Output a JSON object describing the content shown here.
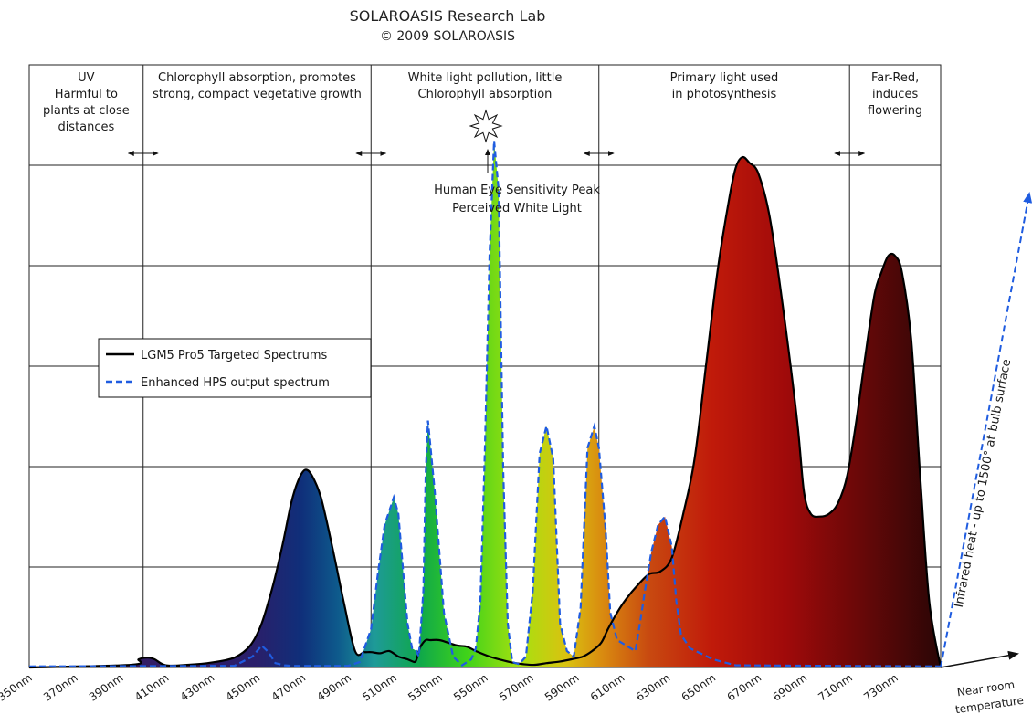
{
  "header": {
    "title": "SOLAROASIS Research Lab",
    "copyright": "© 2009 SOLAROASIS"
  },
  "colors": {
    "targeted_line": "#000000",
    "hps_line": "#1f5ce0",
    "arrow": "#111111"
  },
  "chart_data": {
    "type": "area",
    "title": "SOLAROASIS Research Lab",
    "subtitle": "© 2009 SOLAROASIS",
    "xlabel": "",
    "ylabel": "",
    "xlim": [
      350,
      750
    ],
    "ylim": [
      0,
      100
    ],
    "x_ticks": [
      "350nm",
      "370nm",
      "390nm",
      "410nm",
      "430nm",
      "450nm",
      "470nm",
      "490nm",
      "510nm",
      "530nm",
      "550nm",
      "570nm",
      "590nm",
      "610nm",
      "630nm",
      "650nm",
      "670nm",
      "690nm",
      "710nm",
      "730nm"
    ],
    "grid": true,
    "legend_position": "left-middle",
    "bands": [
      {
        "from": 350,
        "to": 400,
        "lines": [
          "UV",
          "Harmful to",
          "plants at close",
          "distances"
        ]
      },
      {
        "from": 400,
        "to": 500,
        "lines": [
          "Chlorophyll absorption, promotes",
          "strong, compact vegetative growth"
        ]
      },
      {
        "from": 500,
        "to": 600,
        "lines": [
          "White light pollution, little",
          "Chlorophyll absorption"
        ]
      },
      {
        "from": 600,
        "to": 710,
        "lines": [
          "Primary light used",
          "in photosynthesis"
        ]
      },
      {
        "from": 710,
        "to": 750,
        "lines": [
          "Far-Red,",
          "induces",
          "flowering"
        ]
      }
    ],
    "annotations": [
      {
        "text": "Human Eye Sensitivity Peak",
        "x": 550
      },
      {
        "text": "Perceived White Light",
        "x": 550
      },
      {
        "text": "Infrared heat - up to 1500° at bulb surface"
      },
      {
        "text": "Near room"
      },
      {
        "text": "temperature"
      }
    ],
    "series": [
      {
        "name": "LGM5 Pro5 Targeted Spectrums",
        "style": "solid",
        "x": [
          350,
          395,
          398,
          402,
          405,
          410,
          420,
          430,
          440,
          447,
          452,
          457,
          461,
          465,
          468,
          471,
          474,
          478,
          483,
          488,
          493,
          497,
          500,
          504,
          508,
          512,
          516,
          519,
          520,
          521,
          522,
          524,
          526,
          530,
          534,
          538,
          542,
          546,
          552,
          557,
          562,
          567,
          572,
          577,
          583,
          588,
          593,
          597,
          601,
          604,
          608,
          612,
          617,
          622,
          627,
          632,
          637,
          642,
          647,
          652,
          657,
          660,
          663,
          666,
          670,
          675,
          681,
          687,
          690,
          693,
          697,
          701,
          705,
          709,
          713,
          717,
          721,
          724,
          727,
          730,
          733,
          737,
          741,
          745,
          750
        ],
        "y": [
          0,
          0.5,
          1.5,
          1.8,
          1.5,
          0.4,
          0.5,
          0.9,
          1.8,
          4,
          8,
          15,
          22,
          30,
          34,
          36,
          35,
          31,
          22,
          12,
          3,
          2.8,
          2.8,
          2.6,
          3,
          2,
          1.5,
          1,
          1.5,
          3,
          4,
          5,
          5,
          5,
          4.5,
          4,
          3.8,
          3,
          2,
          1.4,
          0.9,
          0.6,
          0.5,
          0.8,
          1.1,
          1.5,
          2,
          3,
          4.5,
          7,
          10,
          12.5,
          15,
          17,
          17.5,
          20,
          28,
          38,
          55,
          72,
          85,
          91,
          93,
          92,
          90,
          82,
          65,
          45,
          32,
          28,
          27.5,
          28,
          30,
          35,
          45,
          57,
          68,
          72,
          75,
          75,
          72,
          60,
          35,
          12,
          0
        ]
      },
      {
        "name": "Enhanced HPS output spectrum",
        "style": "dashed",
        "x": [
          350,
          440,
          448,
          452,
          455,
          458,
          462,
          465,
          490,
          495,
          500,
          503,
          506,
          510,
          512,
          514,
          516,
          518,
          520,
          521,
          523,
          524,
          525,
          528,
          532,
          536,
          540,
          544,
          546,
          548,
          550,
          552,
          554,
          556,
          558,
          560,
          562,
          565,
          568,
          571,
          574,
          577,
          580,
          583,
          586,
          589,
          592,
          595,
          598,
          600,
          603,
          605,
          608,
          612,
          616,
          618,
          620,
          623,
          626,
          629,
          632,
          634,
          636,
          640,
          650,
          660,
          750
        ],
        "y": [
          0.2,
          0.3,
          2,
          4,
          2.8,
          0.8,
          0.4,
          0.3,
          0.3,
          1,
          7,
          17,
          26,
          31,
          28,
          18,
          8,
          3.5,
          3,
          2,
          14,
          35,
          45,
          32,
          10,
          2,
          0.4,
          1.5,
          3.5,
          12,
          40,
          75,
          96,
          87,
          36,
          8,
          1,
          0.6,
          2,
          14,
          39,
          44,
          38,
          8,
          3,
          2,
          11,
          40,
          44,
          40,
          25,
          10,
          5,
          4,
          3,
          8,
          13.5,
          21,
          26,
          27.5,
          22,
          12,
          6,
          3.5,
          1.5,
          0.4,
          0.2
        ]
      }
    ]
  }
}
